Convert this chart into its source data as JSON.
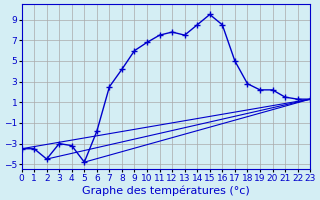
{
  "title": "",
  "xlabel": "Graphe des températures (°c)",
  "ylabel": "",
  "background_color": "#d4eef4",
  "grid_color": "#aaaaaa",
  "line_color": "#0000cc",
  "xlim": [
    0,
    23
  ],
  "ylim": [
    -5.5,
    10.5
  ],
  "yticks": [
    -5,
    -3,
    -1,
    1,
    3,
    5,
    7,
    9
  ],
  "xticks": [
    0,
    1,
    2,
    3,
    4,
    5,
    6,
    7,
    8,
    9,
    10,
    11,
    12,
    13,
    14,
    15,
    16,
    17,
    18,
    19,
    20,
    21,
    22,
    23
  ],
  "main_x": [
    0,
    1,
    2,
    3,
    4,
    5,
    6,
    7,
    8,
    9,
    10,
    11,
    12,
    13,
    14,
    15,
    16,
    17,
    18,
    19,
    20,
    21,
    22,
    23
  ],
  "main_y": [
    -3.5,
    -3.5,
    -4.5,
    -3.0,
    -3.2,
    -4.8,
    -1.8,
    2.5,
    4.2,
    6.0,
    6.8,
    7.5,
    7.8,
    7.5,
    8.5,
    9.5,
    8.5,
    5.0,
    2.8,
    2.2,
    2.2,
    1.5,
    1.3,
    1.3
  ],
  "line1_x": [
    0,
    23
  ],
  "line1_y": [
    -3.5,
    1.3
  ],
  "line2_x": [
    2,
    23
  ],
  "line2_y": [
    -4.5,
    1.3
  ],
  "line3_x": [
    5,
    23
  ],
  "line3_y": [
    -4.8,
    1.3
  ],
  "xlabel_fontsize": 8,
  "tick_fontsize": 6.5
}
